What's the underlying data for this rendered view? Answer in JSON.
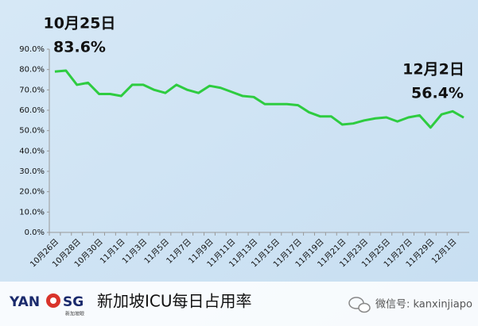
{
  "chart_data": {
    "type": "line",
    "annotations": [
      {
        "text": "10月25日"
      },
      {
        "text": "83.6%"
      },
      {
        "text": "12月2日"
      },
      {
        "text": "56.4%"
      }
    ],
    "categories": [
      "10月26日",
      null,
      "10月28日",
      null,
      "10月30日",
      null,
      "11月1日",
      null,
      "11月3日",
      null,
      "11月5日",
      null,
      "11月7日",
      null,
      "11月9日",
      null,
      "11月11日",
      null,
      "11月13日",
      null,
      "11月15日",
      null,
      "11月17日",
      null,
      "11月19日",
      null,
      "11月21日",
      null,
      "11月23日",
      null,
      "11月25日",
      null,
      "11月27日",
      null,
      "11月29日",
      null,
      "12月1日",
      null
    ],
    "series": [
      {
        "color": "#2ecc40",
        "values": [
          79,
          79.5,
          72.5,
          73.5,
          68,
          68,
          67,
          72.5,
          72.5,
          70,
          68.5,
          72.5,
          70,
          68.5,
          72,
          71,
          69,
          67,
          66.5,
          63,
          63,
          63,
          62.5,
          59,
          57,
          57,
          53,
          53.5,
          55,
          56,
          56.5,
          54.5,
          56.5,
          57.5,
          51.5,
          58,
          59.5,
          56.4
        ]
      }
    ],
    "ylim": [
      0,
      90
    ],
    "yticks": [
      {
        "value": 0,
        "label": "0.0%"
      },
      {
        "value": 10,
        "label": "10.0%"
      },
      {
        "value": 20,
        "label": "20.0%"
      },
      {
        "value": 30,
        "label": "30.0%"
      },
      {
        "value": 40,
        "label": "40.0%"
      },
      {
        "value": 50,
        "label": "50.0%"
      },
      {
        "value": 60,
        "label": "60.0%"
      },
      {
        "value": 70,
        "label": "70.0%"
      },
      {
        "value": 80,
        "label": "80.0%"
      },
      {
        "value": 90,
        "label": "90.0%"
      }
    ],
    "grid": false
  },
  "footer": {
    "logo_left": "YAN",
    "logo_right": "SG",
    "logo_small": "新加坡眼",
    "caption": "新加坡ICU每日占用率",
    "wechat": "微信号: kanxinjiapo"
  }
}
